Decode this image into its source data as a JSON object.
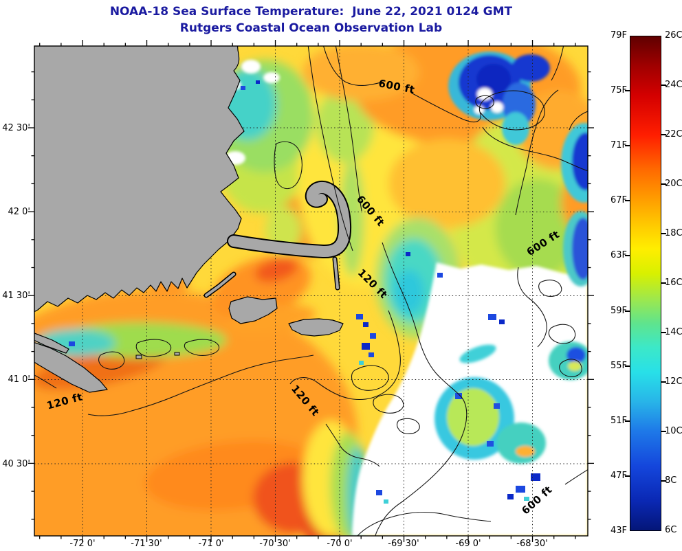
{
  "title": {
    "line1": "NOAA-18 Sea Surface Temperature:  June 22, 2021 0124 GMT",
    "line2": "Rutgers Coastal Ocean Observation Lab",
    "color": "#1a1aa0"
  },
  "axes": {
    "x_ticks": [
      "-72 0'",
      "-71 30'",
      "-71 0'",
      "-70 30'",
      "-70 0'",
      "-69 30'",
      "-69 0'",
      "-68 30'"
    ],
    "y_ticks": [
      "42 30'",
      "42 0'",
      "41 30'",
      "41 0'",
      "40 30'"
    ]
  },
  "colorbar": {
    "fahrenheit_labels": [
      "79F",
      "75F",
      "71F",
      "67F",
      "63F",
      "59F",
      "55F",
      "51F",
      "47F",
      "43F"
    ],
    "celsius_labels": [
      "26C",
      "24C",
      "22C",
      "20C",
      "18C",
      "16C",
      "14C",
      "12C",
      "10C",
      "8C",
      "6C"
    ]
  },
  "map": {
    "contour_labels": [
      "600 ft",
      "600 ft",
      "120 ft",
      "600 ft",
      "120 ft",
      "120 ft",
      "600 ft"
    ],
    "land_color": "#a8a8a8",
    "cloud_color": "#ffffff"
  },
  "chart_data": {
    "type": "heatmap",
    "title": "NOAA-18 Sea Surface Temperature: June 22, 2021 0124 GMT",
    "subtitle": "Rutgers Coastal Ocean Observation Lab",
    "colorbar_fahrenheit": [
      79,
      75,
      71,
      67,
      63,
      59,
      55,
      51,
      47,
      43
    ],
    "colorbar_celsius": [
      26,
      24,
      22,
      20,
      18,
      16,
      14,
      12,
      10,
      8,
      6
    ],
    "longitude_ticks_deg": [
      -72.0,
      -71.5,
      -71.0,
      -70.5,
      -70.0,
      -69.5,
      -69.0,
      -68.5
    ],
    "latitude_ticks_deg": [
      42.5,
      42.0,
      41.5,
      41.0,
      40.5
    ],
    "depth_contours_ft": [
      120,
      600
    ],
    "legend_position": "right",
    "notes": "Satellite SST raster: warm (orange/red ~66-75F) waters south of New England, yellow-green (~60-64F) mid-shelf, cyan/blue cold patches (~45-55F) in Gulf of Maine, gray land mask, white cloud/no-data areas offshore east"
  }
}
